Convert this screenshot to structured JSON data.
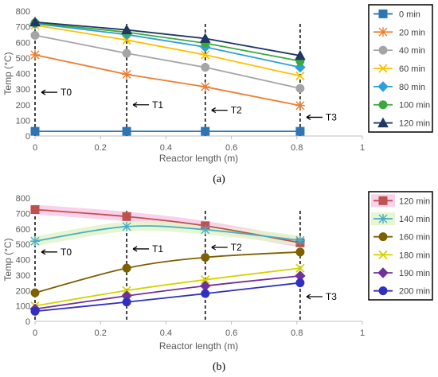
{
  "chart_data": [
    {
      "type": "line",
      "panel_label": "(a)",
      "xlabel": "Reactor length (m)",
      "ylabel": "Temp (°C)",
      "xlim": [
        0,
        1
      ],
      "ylim": [
        0,
        800
      ],
      "xticks": [
        "0",
        "0.2",
        "0.4",
        "0.6",
        "0.8",
        "1"
      ],
      "yticks": [
        "0",
        "100",
        "200",
        "300",
        "400",
        "500",
        "600",
        "700",
        "800"
      ],
      "grid": false,
      "legend_position": "right",
      "x": [
        0,
        0.28,
        0.52,
        0.81
      ],
      "series": [
        {
          "name": "0 min",
          "values": [
            30,
            30,
            30,
            30
          ],
          "color": "#2E75B6",
          "marker": "square"
        },
        {
          "name": "20 min",
          "values": [
            520,
            395,
            315,
            195
          ],
          "color": "#ED7D31",
          "marker": "star"
        },
        {
          "name": "40 min",
          "values": [
            645,
            530,
            440,
            305
          ],
          "color": "#A5A5A5",
          "marker": "circle"
        },
        {
          "name": "60 min",
          "values": [
            710,
            615,
            520,
            385
          ],
          "color": "#FFC000",
          "marker": "x"
        },
        {
          "name": "80 min",
          "values": [
            720,
            650,
            570,
            440
          ],
          "color": "#2E9FD9",
          "marker": "diamond"
        },
        {
          "name": "100 min",
          "values": [
            725,
            665,
            595,
            480
          ],
          "color": "#3BAA3B",
          "marker": "circle"
        },
        {
          "name": "120 min",
          "values": [
            730,
            680,
            625,
            515
          ],
          "color": "#1F3864",
          "marker": "triangle"
        }
      ],
      "vlines": [
        0,
        0.28,
        0.52,
        0.81
      ],
      "annotations": [
        {
          "text": "T0",
          "x": 0,
          "y": 280
        },
        {
          "text": "T1",
          "x": 0.28,
          "y": 200
        },
        {
          "text": "T2",
          "x": 0.52,
          "y": 165
        },
        {
          "text": "T3",
          "x": 0.81,
          "y": 120
        }
      ]
    },
    {
      "type": "line",
      "panel_label": "(b)",
      "xlabel": "Reactor length (m)",
      "ylabel": "Temp (°C)",
      "xlim": [
        0,
        1
      ],
      "ylim": [
        0,
        800
      ],
      "xticks": [
        "0",
        "0.2",
        "0.4",
        "0.6",
        "0.8",
        "1"
      ],
      "yticks": [
        "0",
        "100",
        "200",
        "300",
        "400",
        "500",
        "600",
        "700",
        "800"
      ],
      "grid": false,
      "legend_position": "right",
      "x": [
        0,
        0.28,
        0.52,
        0.81
      ],
      "series": [
        {
          "name": "120 min",
          "values": [
            725,
            680,
            620,
            510
          ],
          "color": "#C0504D",
          "marker": "square",
          "highlight": "#F8C9E8",
          "smooth": true
        },
        {
          "name": "140 min",
          "values": [
            520,
            615,
            595,
            525
          ],
          "color": "#4BACC6",
          "marker": "star",
          "highlight": "#E2F5C8",
          "smooth": true
        },
        {
          "name": "160 min",
          "values": [
            185,
            345,
            415,
            450
          ],
          "color": "#7F6000",
          "marker": "circle",
          "smooth": true
        },
        {
          "name": "180 min",
          "values": [
            100,
            200,
            270,
            345
          ],
          "color": "#D4D400",
          "marker": "x",
          "smooth": true
        },
        {
          "name": "190 min",
          "values": [
            80,
            165,
            230,
            295
          ],
          "color": "#7030A0",
          "marker": "diamond",
          "smooth": true
        },
        {
          "name": "200 min",
          "values": [
            65,
            125,
            180,
            250
          ],
          "color": "#3030C0",
          "marker": "circle",
          "smooth": true
        }
      ],
      "vlines": [
        0,
        0.28,
        0.52,
        0.81
      ],
      "annotations": [
        {
          "text": "T0",
          "x": 0,
          "y": 450
        },
        {
          "text": "T1",
          "x": 0.28,
          "y": 470
        },
        {
          "text": "T2",
          "x": 0.52,
          "y": 480
        },
        {
          "text": "T3",
          "x": 0.81,
          "y": 160
        }
      ]
    }
  ]
}
